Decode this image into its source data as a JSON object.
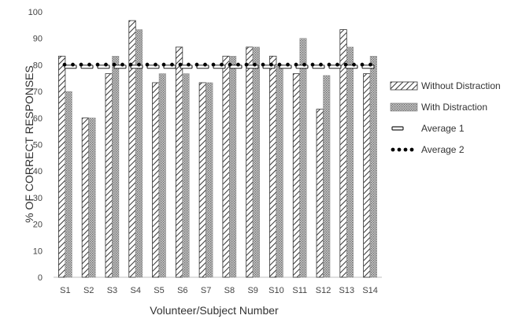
{
  "chart_data": {
    "type": "bar",
    "title": "",
    "xlabel": "Volunteer/Subject Number",
    "ylabel": "% OF CORRECT RESPONSES",
    "ylim": [
      0,
      100
    ],
    "yticks": [
      0,
      10,
      20,
      30,
      40,
      50,
      60,
      70,
      80,
      90,
      100
    ],
    "grid": false,
    "legend_position": "right",
    "categories": [
      "S1",
      "S2",
      "S3",
      "S4",
      "S5",
      "S6",
      "S7",
      "S8",
      "S9",
      "S10",
      "S11",
      "S12",
      "S13",
      "S14"
    ],
    "series": [
      {
        "name": "Without Distraction",
        "pattern": "diagonal-hatch",
        "color": "#444444",
        "values": [
          83.3,
          60,
          76.7,
          96.7,
          73.3,
          86.7,
          73.3,
          83.3,
          86.7,
          83.3,
          76.7,
          63.3,
          93.3,
          76.7
        ]
      },
      {
        "name": "With Distraction",
        "pattern": "dotted-gray",
        "color": "#9a9a9a",
        "values": [
          70,
          60,
          83.3,
          93.3,
          76.7,
          76.7,
          73.3,
          83.3,
          86.7,
          80,
          90,
          76,
          86.7,
          83.3
        ]
      }
    ],
    "reference_lines": [
      {
        "name": "Average 1",
        "style": "outlined-dash",
        "value": 79.3
      },
      {
        "name": "Average 2",
        "style": "dots",
        "value": 80.1
      }
    ]
  }
}
